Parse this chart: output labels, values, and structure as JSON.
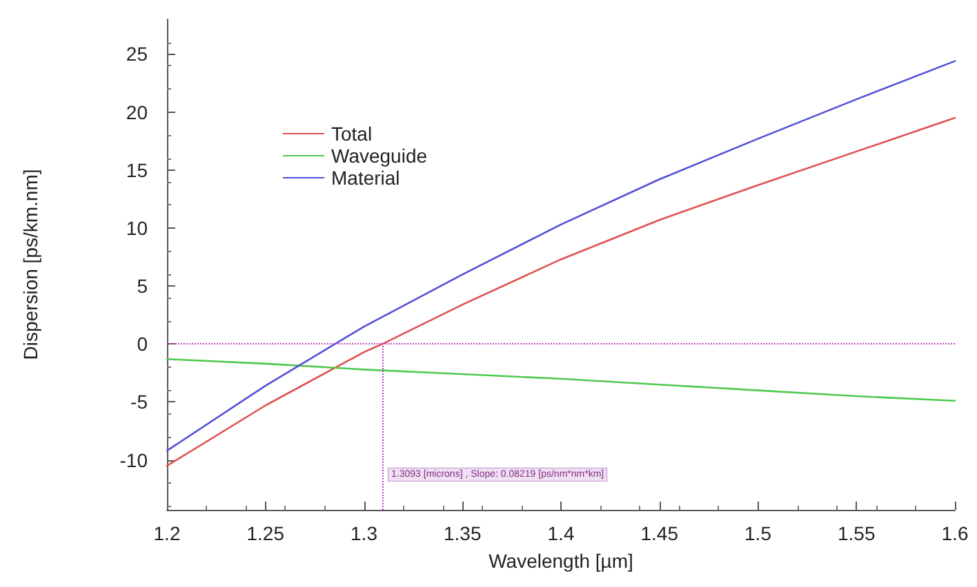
{
  "chart_data": {
    "type": "line",
    "xlabel": "Wavelength [µm]",
    "ylabel": "Dispersion [ps/km.nm]",
    "xlim": [
      1.2,
      1.6
    ],
    "xticks": [
      1.2,
      1.25,
      1.3,
      1.35,
      1.4,
      1.45,
      1.5,
      1.55,
      1.6
    ],
    "ylim": [
      -14.3,
      28
    ],
    "yticks": [
      -10,
      -5,
      0,
      5,
      10,
      15,
      20,
      25
    ],
    "series": [
      {
        "name": "Total",
        "color": "#e05050",
        "x": [
          1.2,
          1.25,
          1.3,
          1.3093,
          1.35,
          1.4,
          1.45,
          1.5,
          1.55,
          1.6
        ],
        "values": [
          -10.5,
          -5.3,
          -0.7,
          0,
          3.4,
          7.3,
          10.7,
          13.7,
          16.6,
          19.5
        ]
      },
      {
        "name": "Waveguide",
        "color": "#50c850",
        "x": [
          1.2,
          1.25,
          1.3,
          1.35,
          1.4,
          1.45,
          1.5,
          1.55,
          1.6
        ],
        "values": [
          -1.3,
          -1.7,
          -2.2,
          -2.6,
          -3.0,
          -3.5,
          -4.0,
          -4.5,
          -4.9
        ]
      },
      {
        "name": "Material",
        "color": "#5050d8",
        "x": [
          1.2,
          1.25,
          1.3,
          1.35,
          1.4,
          1.45,
          1.5,
          1.55,
          1.6
        ],
        "values": [
          -9.2,
          -3.6,
          1.5,
          6.0,
          10.3,
          14.2,
          17.7,
          21.1,
          24.4
        ]
      }
    ],
    "ref_lines": [
      {
        "axis": "y",
        "value": 0,
        "color": "#c040c0",
        "line_style": "dotted"
      },
      {
        "axis": "x",
        "value": 1.3093,
        "color": "#c040c0",
        "line_style": "dotted",
        "label": "1.3093 [microns] , Slope: 0.08219 [ps/nm*nm*km]"
      }
    ],
    "legend": "top left",
    "grid": false,
    "marker": "none",
    "line_style": "solid"
  }
}
